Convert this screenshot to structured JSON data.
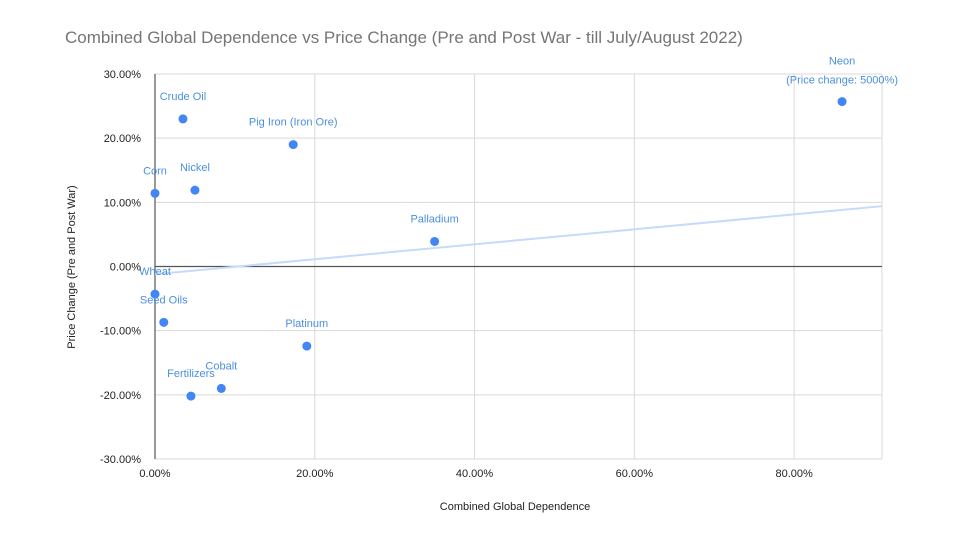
{
  "chart_data": {
    "type": "scatter",
    "title": "Combined Global Dependence vs Price Change (Pre and Post War - till July/August 2022)",
    "xlabel": "Combined Global Dependence",
    "ylabel": "Price Change (Pre and Post War)",
    "xlim": [
      0,
      0.91
    ],
    "ylim": [
      -0.3,
      0.3
    ],
    "x_ticks": [
      0,
      0.2,
      0.4,
      0.6,
      0.8
    ],
    "x_tick_labels": [
      "0.00%",
      "20.00%",
      "40.00%",
      "60.00%",
      "80.00%"
    ],
    "y_ticks": [
      0.3,
      0.2,
      0.1,
      0.0,
      -0.1,
      -0.2,
      -0.3
    ],
    "y_tick_labels": [
      "30.00%",
      "20.00%",
      "10.00%",
      "0.00%",
      "-10.00%",
      "-20.00%",
      "-30.00%"
    ],
    "grid": true,
    "colors": {
      "points": "#4285f4",
      "labels": "#4a8fe0",
      "trendline": "#c6dafc",
      "axis": "#555555",
      "grid": "#d9d9d9"
    },
    "points": [
      {
        "label": "Neon",
        "sublabel": "(Price change: 5000%)",
        "x": 0.86,
        "y": 0.257
      },
      {
        "label": "Crude Oil",
        "x": 0.035,
        "y": 0.23
      },
      {
        "label": "Pig Iron (Iron Ore)",
        "x": 0.173,
        "y": 0.19
      },
      {
        "label": "Corn",
        "x": 0.0,
        "y": 0.114
      },
      {
        "label": "Nickel",
        "x": 0.05,
        "y": 0.119
      },
      {
        "label": "Palladium",
        "x": 0.35,
        "y": 0.039
      },
      {
        "label": "Wheat",
        "x": 0.0,
        "y": -0.043
      },
      {
        "label": "Seed Oils",
        "x": 0.011,
        "y": -0.087
      },
      {
        "label": "Platinum",
        "x": 0.19,
        "y": -0.124
      },
      {
        "label": "Cobalt",
        "x": 0.083,
        "y": -0.19
      },
      {
        "label": "Fertilizers",
        "x": 0.045,
        "y": -0.202
      }
    ],
    "trendline": {
      "x": [
        0,
        0.91
      ],
      "y": [
        -0.012,
        0.094
      ]
    }
  }
}
